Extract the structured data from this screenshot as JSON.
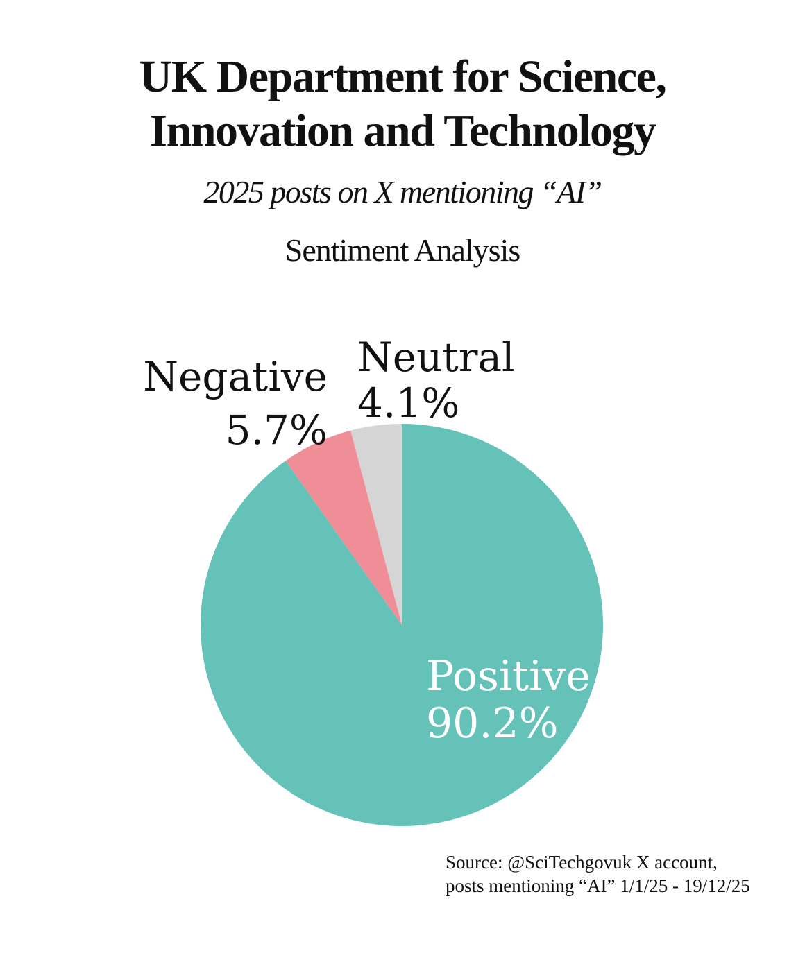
{
  "header": {
    "title_line1": "UK Department for Science,",
    "title_line2": "Innovation and Technology",
    "subtitle": "2025 posts on X mentioning “AI”",
    "chart_heading": "Sentiment Analysis"
  },
  "chart_data": {
    "type": "pie",
    "title": "Sentiment Analysis",
    "categories": [
      "Neutral",
      "Negative",
      "Positive"
    ],
    "values": [
      4.1,
      5.7,
      90.2
    ],
    "labels": [
      "4.1%",
      "5.7%",
      "90.2%"
    ],
    "colors": [
      "#d5d5d5",
      "#ef8e97",
      "#64c2b8"
    ],
    "label_colors": [
      "#111111",
      "#111111",
      "#ffffff"
    ],
    "start_angle_deg": 0,
    "direction": "counterclockwise"
  },
  "source": {
    "line1": "Source: @SciTechgovuk X account,",
    "line2": "posts mentioning “AI” 1/1/25 - 19/12/25"
  }
}
